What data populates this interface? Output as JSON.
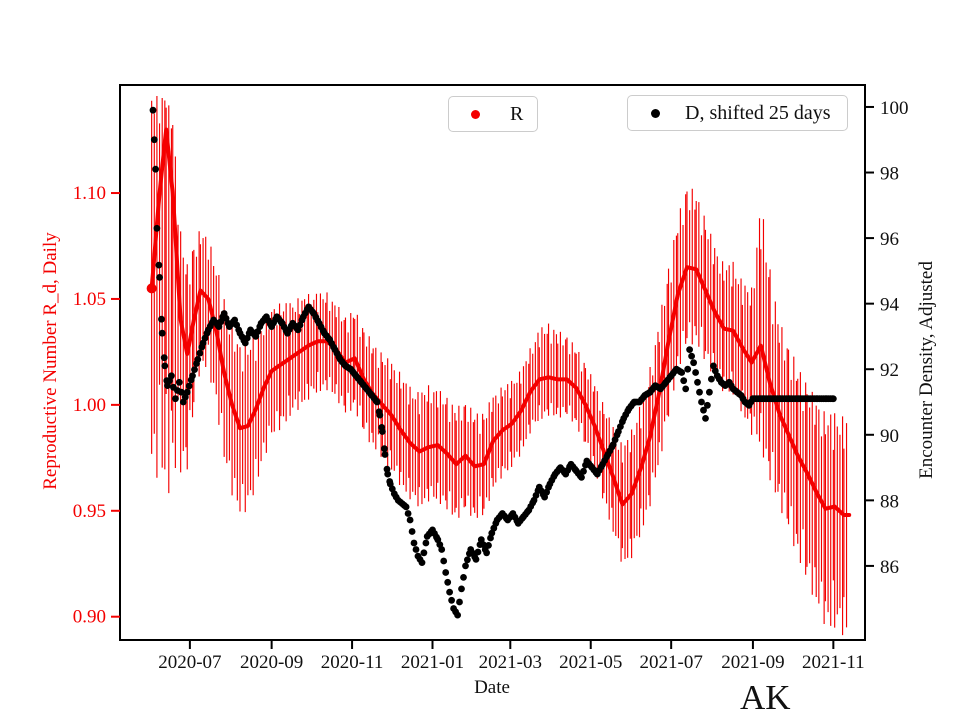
{
  "figure": {
    "corner_label": "AK",
    "legend_r": {
      "label": "R",
      "marker_color": "#f40000"
    },
    "legend_d": {
      "label": "D, shifted 25 days",
      "marker_color": "#000000"
    }
  },
  "chart_data": {
    "type": "line",
    "title": "",
    "xlabel": "Date",
    "ylabel_left": "Reproductive Number R_d, Daily",
    "ylabel_right": "Encounter Density, Adjusted",
    "legend_position": "upper center, two separate boxes",
    "grid": false,
    "x_tick_labels": [
      "2020-07",
      "2020-09",
      "2020-11",
      "2021-01",
      "2021-03",
      "2021-05",
      "2021-07",
      "2021-09",
      "2021-11"
    ],
    "xlim": [
      "2020-05-09",
      "2021-11-25"
    ],
    "ylim_left": [
      0.889,
      1.151
    ],
    "yticks_left": [
      0.9,
      0.95,
      1.0,
      1.05,
      1.1
    ],
    "ylim_right": [
      83.74,
      100.67
    ],
    "yticks_right": [
      86,
      88,
      90,
      92,
      94,
      96,
      98,
      100
    ],
    "axis_color_left": "#f40000",
    "axis_color_right": "#111111",
    "series": [
      {
        "name": "R",
        "style": "thick line of daily dots with vertical error bars",
        "color": "#f40000",
        "axis": "left",
        "dates": [
          "2020-06-02",
          "2020-06-08",
          "2020-06-13",
          "2020-06-18",
          "2020-06-24",
          "2020-06-29",
          "2020-07-04",
          "2020-07-09",
          "2020-07-15",
          "2020-07-21",
          "2020-07-27",
          "2020-08-02",
          "2020-08-08",
          "2020-08-14",
          "2020-08-20",
          "2020-08-26",
          "2020-09-01",
          "2020-09-08",
          "2020-09-15",
          "2020-09-22",
          "2020-09-29",
          "2020-10-06",
          "2020-10-13",
          "2020-10-20",
          "2020-10-27",
          "2020-11-03",
          "2020-11-10",
          "2020-11-17",
          "2020-11-24",
          "2020-12-01",
          "2020-12-08",
          "2020-12-15",
          "2020-12-22",
          "2020-12-29",
          "2021-01-05",
          "2021-01-12",
          "2021-01-19",
          "2021-01-26",
          "2021-02-02",
          "2021-02-09",
          "2021-02-16",
          "2021-02-23",
          "2021-03-02",
          "2021-03-09",
          "2021-03-16",
          "2021-03-23",
          "2021-03-30",
          "2021-04-06",
          "2021-04-13",
          "2021-04-20",
          "2021-04-27",
          "2021-05-04",
          "2021-05-11",
          "2021-05-18",
          "2021-05-25",
          "2021-06-01",
          "2021-06-08",
          "2021-06-15",
          "2021-06-22",
          "2021-06-29",
          "2021-07-06",
          "2021-07-13",
          "2021-07-20",
          "2021-07-27",
          "2021-08-03",
          "2021-08-10",
          "2021-08-17",
          "2021-08-24",
          "2021-08-31",
          "2021-09-07",
          "2021-09-14",
          "2021-09-21",
          "2021-09-28",
          "2021-10-05",
          "2021-10-12",
          "2021-10-19",
          "2021-10-26",
          "2021-11-02",
          "2021-11-09",
          "2021-11-13"
        ],
        "values": [
          1.055,
          1.1,
          1.13,
          1.1,
          1.04,
          1.024,
          1.04,
          1.054,
          1.05,
          1.035,
          1.015,
          1.0,
          0.989,
          0.99,
          0.998,
          1.008,
          1.016,
          1.019,
          1.022,
          1.025,
          1.028,
          1.03,
          1.03,
          1.026,
          1.02,
          1.022,
          1.012,
          1.005,
          1.0,
          0.995,
          0.988,
          0.982,
          0.978,
          0.98,
          0.981,
          0.977,
          0.972,
          0.976,
          0.971,
          0.972,
          0.983,
          0.988,
          0.991,
          0.997,
          1.006,
          1.012,
          1.013,
          1.012,
          1.012,
          1.008,
          1.0,
          0.99,
          0.978,
          0.966,
          0.953,
          0.958,
          0.97,
          0.985,
          1.006,
          1.03,
          1.052,
          1.065,
          1.064,
          1.054,
          1.044,
          1.036,
          1.035,
          1.027,
          1.02,
          1.028,
          1.01,
          0.996,
          0.986,
          0.976,
          0.968,
          0.959,
          0.951,
          0.952,
          0.948,
          0.948
        ],
        "err_lo": [
          0.075,
          0.11,
          0.145,
          0.11,
          0.06,
          0.045,
          0.035,
          0.03,
          0.028,
          0.03,
          0.034,
          0.035,
          0.034,
          0.033,
          0.031,
          0.028,
          0.026,
          0.025,
          0.023,
          0.022,
          0.021,
          0.02,
          0.019,
          0.019,
          0.02,
          0.02,
          0.021,
          0.021,
          0.021,
          0.022,
          0.022,
          0.022,
          0.022,
          0.021,
          0.022,
          0.022,
          0.022,
          0.021,
          0.021,
          0.02,
          0.019,
          0.018,
          0.017,
          0.017,
          0.016,
          0.016,
          0.015,
          0.015,
          0.014,
          0.015,
          0.016,
          0.018,
          0.02,
          0.022,
          0.024,
          0.025,
          0.026,
          0.027,
          0.028,
          0.03,
          0.03,
          0.03,
          0.029,
          0.028,
          0.026,
          0.025,
          0.025,
          0.026,
          0.028,
          0.04,
          0.038,
          0.036,
          0.037,
          0.04,
          0.042,
          0.044,
          0.046,
          0.048,
          0.047,
          0.046
        ],
        "err_hi": [
          0.085,
          0.04,
          0.012,
          0.03,
          0.035,
          0.035,
          0.03,
          0.024,
          0.024,
          0.026,
          0.03,
          0.032,
          0.033,
          0.034,
          0.03,
          0.027,
          0.025,
          0.024,
          0.022,
          0.021,
          0.02,
          0.019,
          0.019,
          0.018,
          0.018,
          0.019,
          0.02,
          0.02,
          0.02,
          0.021,
          0.022,
          0.022,
          0.023,
          0.024,
          0.022,
          0.022,
          0.022,
          0.021,
          0.021,
          0.02,
          0.018,
          0.017,
          0.017,
          0.016,
          0.017,
          0.02,
          0.021,
          0.019,
          0.017,
          0.016,
          0.016,
          0.017,
          0.018,
          0.02,
          0.023,
          0.025,
          0.026,
          0.027,
          0.028,
          0.029,
          0.03,
          0.032,
          0.03,
          0.028,
          0.026,
          0.025,
          0.027,
          0.026,
          0.029,
          0.057,
          0.045,
          0.036,
          0.035,
          0.035,
          0.035,
          0.036,
          0.037,
          0.037,
          0.038,
          0.038
        ]
      },
      {
        "name": "D, shifted 25 days",
        "style": "scatter dots",
        "color": "#000000",
        "axis": "right",
        "dates": [
          "2020-06-03",
          "2020-06-04",
          "2020-06-05",
          "2020-06-06",
          "2020-06-08",
          "2020-06-10",
          "2020-06-12",
          "2020-06-14",
          "2020-06-17",
          "2020-06-20",
          "2020-06-23",
          "2020-06-26",
          "2020-06-29",
          "2020-07-03",
          "2020-07-07",
          "2020-07-11",
          "2020-07-15",
          "2020-07-19",
          "2020-07-23",
          "2020-07-27",
          "2020-07-31",
          "2020-08-04",
          "2020-08-08",
          "2020-08-12",
          "2020-08-16",
          "2020-08-20",
          "2020-08-24",
          "2020-08-28",
          "2020-09-01",
          "2020-09-05",
          "2020-09-09",
          "2020-09-13",
          "2020-09-17",
          "2020-09-21",
          "2020-09-25",
          "2020-09-29",
          "2020-10-03",
          "2020-10-07",
          "2020-10-11",
          "2020-10-15",
          "2020-10-19",
          "2020-10-23",
          "2020-10-27",
          "2020-10-31",
          "2020-11-04",
          "2020-11-08",
          "2020-11-12",
          "2020-11-16",
          "2020-11-20",
          "2020-11-22",
          "2020-11-24",
          "2020-11-26",
          "2020-11-28",
          "2020-11-30",
          "2020-12-03",
          "2020-12-06",
          "2020-12-09",
          "2020-12-12",
          "2020-12-15",
          "2020-12-18",
          "2020-12-21",
          "2020-12-24",
          "2020-12-28",
          "2021-01-01",
          "2021-01-05",
          "2021-01-08",
          "2021-01-11",
          "2021-01-14",
          "2021-01-17",
          "2021-01-20",
          "2021-01-23",
          "2021-01-26",
          "2021-01-30",
          "2021-02-03",
          "2021-02-07",
          "2021-02-11",
          "2021-02-15",
          "2021-02-19",
          "2021-02-23",
          "2021-02-27",
          "2021-03-03",
          "2021-03-07",
          "2021-03-11",
          "2021-03-15",
          "2021-03-19",
          "2021-03-23",
          "2021-03-27",
          "2021-03-31",
          "2021-04-04",
          "2021-04-08",
          "2021-04-12",
          "2021-04-16",
          "2021-04-20",
          "2021-04-24",
          "2021-04-28",
          "2021-05-02",
          "2021-05-06",
          "2021-05-10",
          "2021-05-14",
          "2021-05-18",
          "2021-05-22",
          "2021-05-26",
          "2021-05-30",
          "2021-06-03",
          "2021-06-07",
          "2021-06-11",
          "2021-06-15",
          "2021-06-19",
          "2021-06-23",
          "2021-06-27",
          "2021-07-01",
          "2021-07-05",
          "2021-07-09",
          "2021-07-12",
          "2021-07-15",
          "2021-07-18",
          "2021-07-21",
          "2021-07-24",
          "2021-07-27",
          "2021-07-30",
          "2021-08-02",
          "2021-08-05",
          "2021-08-08",
          "2021-08-11",
          "2021-08-14",
          "2021-08-17",
          "2021-08-20",
          "2021-08-23",
          "2021-08-26",
          "2021-08-29",
          "2021-09-01",
          "2021-09-08",
          "2021-09-15",
          "2021-09-22",
          "2021-09-29",
          "2021-10-06",
          "2021-10-13",
          "2021-10-20",
          "2021-10-27",
          "2021-11-01"
        ],
        "values": [
          99.9,
          99.0,
          98.1,
          96.3,
          94.8,
          93.1,
          92.1,
          91.5,
          91.8,
          91.1,
          91.6,
          91.0,
          91.3,
          91.8,
          92.3,
          92.8,
          93.2,
          93.5,
          93.3,
          93.7,
          93.3,
          93.5,
          93.1,
          92.8,
          93.2,
          93.0,
          93.4,
          93.6,
          93.3,
          93.6,
          93.4,
          93.1,
          93.4,
          93.2,
          93.6,
          93.9,
          93.7,
          93.4,
          93.1,
          92.9,
          92.6,
          92.3,
          92.1,
          92.0,
          91.8,
          91.6,
          91.4,
          91.2,
          91.0,
          90.6,
          90.1,
          89.4,
          88.8,
          88.5,
          88.2,
          88.0,
          87.9,
          87.8,
          87.4,
          86.7,
          86.3,
          86.1,
          86.9,
          87.1,
          86.8,
          86.5,
          85.8,
          85.2,
          84.7,
          84.5,
          85.3,
          86.0,
          86.5,
          86.2,
          86.8,
          86.4,
          87.0,
          87.4,
          87.6,
          87.4,
          87.6,
          87.3,
          87.5,
          87.7,
          88.0,
          88.4,
          88.1,
          88.5,
          88.8,
          89.0,
          88.8,
          89.1,
          88.9,
          88.7,
          89.2,
          89.0,
          88.8,
          89.1,
          89.4,
          89.7,
          90.1,
          90.5,
          90.8,
          91.0,
          91.0,
          91.2,
          91.3,
          91.5,
          91.4,
          91.6,
          91.8,
          92.0,
          91.9,
          91.4,
          92.6,
          92.2,
          91.6,
          91.0,
          90.5,
          91.3,
          92.1,
          91.8,
          91.6,
          91.5,
          91.6,
          91.4,
          91.3,
          91.2,
          91.0,
          90.9,
          91.1,
          91.1,
          91.1,
          91.1,
          91.1,
          91.1,
          91.1,
          91.1,
          91.1,
          91.1
        ]
      }
    ]
  }
}
